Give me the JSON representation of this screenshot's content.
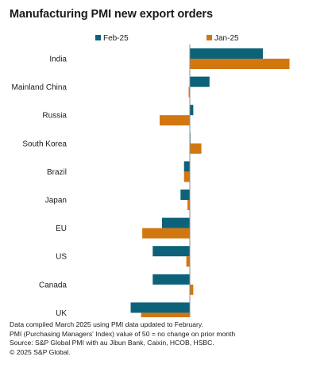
{
  "chart_data": {
    "type": "bar",
    "orientation": "horizontal",
    "title": "Manufacturing PMI new export orders",
    "categories": [
      "India",
      "Mainland China",
      "Russia",
      "South Korea",
      "Brazil",
      "Japan",
      "EU",
      "US",
      "Canada",
      "UK"
    ],
    "series": [
      {
        "name": "Feb-25",
        "color": "#0b6279",
        "values": [
          56.3,
          51.7,
          50.3,
          50.0,
          49.5,
          49.2,
          47.6,
          46.8,
          46.8,
          44.9
        ]
      },
      {
        "name": "Jan-25",
        "color": "#d2770f",
        "values": [
          58.6,
          49.9,
          47.4,
          51.0,
          49.5,
          49.8,
          45.9,
          49.7,
          50.3,
          45.8
        ]
      }
    ],
    "xlim": [
      40,
      60
    ],
    "xticks": [
      "40",
      "45",
      "50",
      "55",
      "60"
    ],
    "baseline": 50,
    "legend_position": "top",
    "grid": false
  },
  "notes": [
    "Data compiled March 2025 using PMI data updated to February.",
    "PMI (Purchasing Managers' Index) value of 50 = no change on prior month",
    "Source: S&P Global PMI with au Jibun Bank, Caixin, HCOB, HSBC.",
    "© 2025 S&P Global."
  ]
}
